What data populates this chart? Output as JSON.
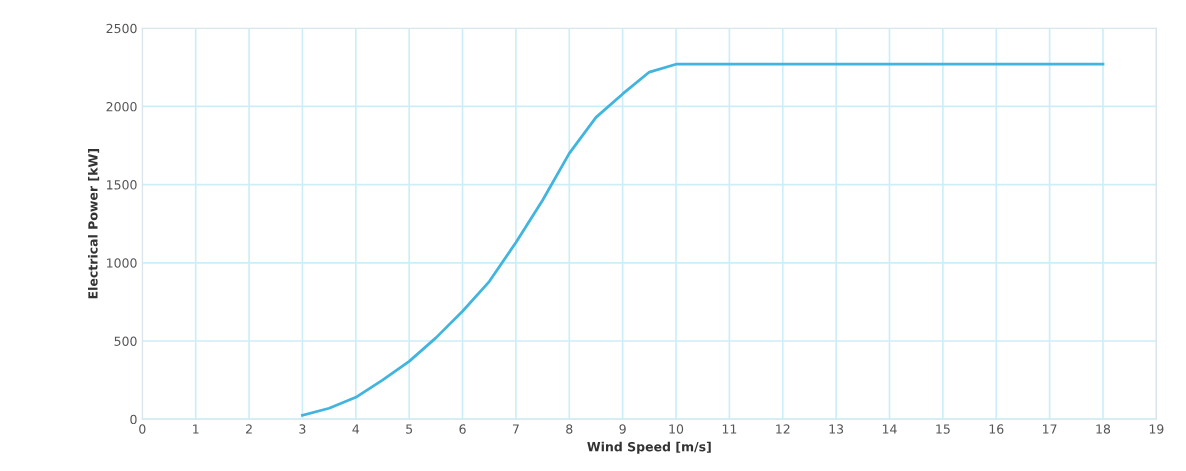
{
  "chart_data": {
    "type": "line",
    "xlabel": "Wind Speed [m/s]",
    "ylabel": "Electrical Power [kW]",
    "x": [
      3,
      3.5,
      4,
      4.5,
      5,
      5.5,
      6,
      6.5,
      7,
      7.5,
      8,
      8.5,
      9,
      9.5,
      10,
      11,
      12,
      13,
      14,
      15,
      16,
      17,
      18
    ],
    "series": [
      {
        "color": "#41b4e0",
        "values": [
          25,
          70,
          140,
          250,
          370,
          520,
          690,
          880,
          1130,
          1400,
          1700,
          1930,
          2080,
          2220,
          2270,
          2270,
          2270,
          2270,
          2270,
          2270,
          2270,
          2270,
          2270
        ]
      }
    ],
    "xlim": [
      0,
      19
    ],
    "xticks": [
      0,
      1,
      2,
      3,
      4,
      5,
      6,
      7,
      8,
      9,
      10,
      11,
      12,
      13,
      14,
      15,
      16,
      17,
      18,
      19
    ],
    "ylim": [
      0,
      2500
    ],
    "yticks": [
      0,
      500,
      1000,
      1500,
      2000,
      2500
    ],
    "grid": true,
    "legend": false,
    "marker": "none",
    "line_style": "solid"
  }
}
